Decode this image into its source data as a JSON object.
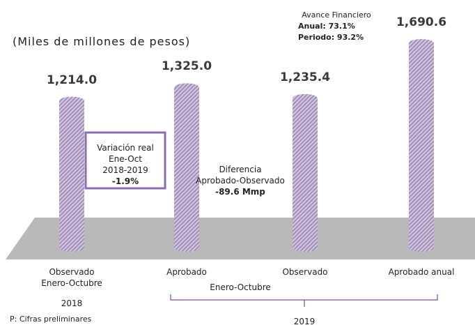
{
  "chart_data": {
    "type": "bar",
    "subtitle": "(Miles de millones de pesos)",
    "categories": [
      "Observado Enero-Octubre",
      "Aprobado",
      "Observado",
      "Aprobado anual"
    ],
    "values": [
      1214.0,
      1325.0,
      1235.4,
      1690.6
    ],
    "value_labels": [
      "1,214.0",
      "1,325.0",
      "1,235.4",
      "1,690.6"
    ],
    "color": "#c9b3dd",
    "groups": [
      "2018",
      "Enero-Octubre",
      "2019"
    ],
    "annotations": {
      "avance": {
        "title": "Avance Financiero",
        "anual": "Anual: 73.1%",
        "periodo": "Periodo: 93.2%"
      },
      "variacion": {
        "lines": [
          "Variación real",
          "Ene-Oct",
          "2018-2019"
        ],
        "value": "-1.9%"
      },
      "diferencia": {
        "lines": [
          "Diferencia",
          "Aprobado-Observado"
        ],
        "value": "-89.6 Mmp"
      }
    },
    "footnote": "P: Cifras preliminares"
  }
}
